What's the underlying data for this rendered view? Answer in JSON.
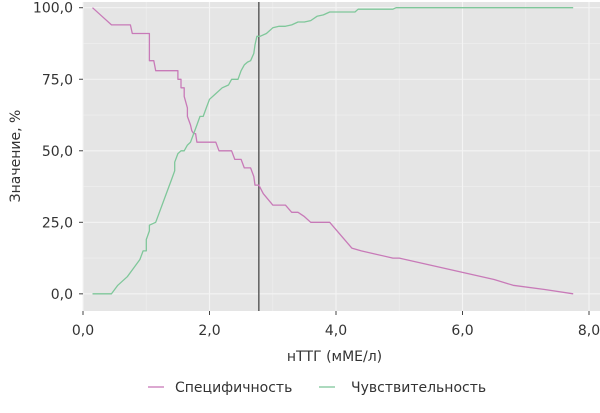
{
  "chart_data": {
    "type": "line",
    "xlabel": "нТТГ (мМЕ/л)",
    "ylabel": "Значение, %",
    "xlim": [
      0,
      8
    ],
    "ylim": [
      -6,
      102
    ],
    "x_ticks": [
      0,
      2,
      4,
      6,
      8
    ],
    "x_tick_labels": [
      "0,0",
      "2,0",
      "4,0",
      "6,0",
      "8,0"
    ],
    "y_ticks": [
      0,
      25,
      50,
      75,
      100
    ],
    "y_tick_labels": [
      "0,0",
      "25,0",
      "50,0",
      "75,0",
      "100,0"
    ],
    "grid": true,
    "legend_position": "bottom",
    "vertical_line_x": 2.78,
    "colors": {
      "panel_background": "#e5e5e5",
      "grid": "#f4f4f4",
      "specificity": "#c87ab8",
      "sensitivity": "#7fc79a",
      "reference_line": "#555555"
    },
    "series": [
      {
        "name": "Специфичность",
        "color": "#c87ab8",
        "points": [
          [
            0.15,
            100
          ],
          [
            0.3,
            97
          ],
          [
            0.45,
            94
          ],
          [
            0.55,
            94
          ],
          [
            0.65,
            94
          ],
          [
            0.75,
            94
          ],
          [
            0.78,
            91
          ],
          [
            0.9,
            91
          ],
          [
            1.0,
            91
          ],
          [
            1.05,
            91
          ],
          [
            1.05,
            81.5
          ],
          [
            1.12,
            81.5
          ],
          [
            1.15,
            78
          ],
          [
            1.25,
            78
          ],
          [
            1.35,
            78
          ],
          [
            1.45,
            78
          ],
          [
            1.5,
            78
          ],
          [
            1.5,
            75
          ],
          [
            1.55,
            75
          ],
          [
            1.55,
            72
          ],
          [
            1.6,
            72
          ],
          [
            1.6,
            69
          ],
          [
            1.65,
            65
          ],
          [
            1.65,
            62
          ],
          [
            1.7,
            59
          ],
          [
            1.72,
            57
          ],
          [
            1.75,
            56
          ],
          [
            1.78,
            56
          ],
          [
            1.8,
            53
          ],
          [
            1.9,
            53
          ],
          [
            2.0,
            53
          ],
          [
            2.1,
            53
          ],
          [
            2.15,
            50
          ],
          [
            2.3,
            50
          ],
          [
            2.35,
            50
          ],
          [
            2.4,
            47
          ],
          [
            2.5,
            47
          ],
          [
            2.55,
            44
          ],
          [
            2.65,
            44
          ],
          [
            2.7,
            41
          ],
          [
            2.72,
            38
          ],
          [
            2.78,
            38
          ],
          [
            2.85,
            35
          ],
          [
            3.0,
            31
          ],
          [
            3.1,
            31
          ],
          [
            3.2,
            31
          ],
          [
            3.3,
            28.5
          ],
          [
            3.4,
            28.5
          ],
          [
            3.5,
            27
          ],
          [
            3.6,
            25
          ],
          [
            3.8,
            25
          ],
          [
            3.9,
            25
          ],
          [
            4.25,
            16
          ],
          [
            4.4,
            15
          ],
          [
            4.9,
            12.5
          ],
          [
            5.0,
            12.5
          ],
          [
            5.5,
            10
          ],
          [
            6.0,
            7.5
          ],
          [
            6.5,
            5
          ],
          [
            6.8,
            3
          ],
          [
            7.3,
            1.5
          ],
          [
            7.75,
            0
          ]
        ]
      },
      {
        "name": "Чувствительность",
        "color": "#7fc79a",
        "points": [
          [
            0.15,
            0
          ],
          [
            0.4,
            0
          ],
          [
            0.45,
            0
          ],
          [
            0.55,
            3
          ],
          [
            0.7,
            6
          ],
          [
            0.8,
            9
          ],
          [
            0.9,
            12
          ],
          [
            0.95,
            15
          ],
          [
            1.0,
            15
          ],
          [
            1.0,
            19
          ],
          [
            1.05,
            22
          ],
          [
            1.05,
            24
          ],
          [
            1.15,
            25
          ],
          [
            1.2,
            28
          ],
          [
            1.3,
            34
          ],
          [
            1.35,
            37
          ],
          [
            1.4,
            40
          ],
          [
            1.45,
            43
          ],
          [
            1.45,
            46
          ],
          [
            1.5,
            49
          ],
          [
            1.55,
            50
          ],
          [
            1.6,
            50
          ],
          [
            1.65,
            52
          ],
          [
            1.7,
            53
          ],
          [
            1.75,
            56
          ],
          [
            1.8,
            59
          ],
          [
            1.85,
            62
          ],
          [
            1.9,
            62
          ],
          [
            1.95,
            65
          ],
          [
            2.0,
            68
          ],
          [
            2.1,
            70
          ],
          [
            2.2,
            72
          ],
          [
            2.3,
            73
          ],
          [
            2.35,
            75
          ],
          [
            2.45,
            75
          ],
          [
            2.5,
            78
          ],
          [
            2.55,
            80
          ],
          [
            2.6,
            81
          ],
          [
            2.65,
            81.5
          ],
          [
            2.7,
            84
          ],
          [
            2.72,
            87
          ],
          [
            2.75,
            90
          ],
          [
            2.8,
            90
          ],
          [
            2.9,
            91
          ],
          [
            3.0,
            93
          ],
          [
            3.1,
            93.5
          ],
          [
            3.2,
            93.5
          ],
          [
            3.3,
            94
          ],
          [
            3.4,
            95
          ],
          [
            3.5,
            95
          ],
          [
            3.6,
            95.5
          ],
          [
            3.7,
            97
          ],
          [
            3.8,
            97.5
          ],
          [
            3.9,
            98.5
          ],
          [
            4.0,
            98.5
          ],
          [
            4.3,
            98.5
          ],
          [
            4.35,
            99.5
          ],
          [
            4.6,
            99.5
          ],
          [
            4.9,
            99.5
          ],
          [
            4.95,
            100
          ],
          [
            7.75,
            100
          ]
        ]
      }
    ]
  }
}
